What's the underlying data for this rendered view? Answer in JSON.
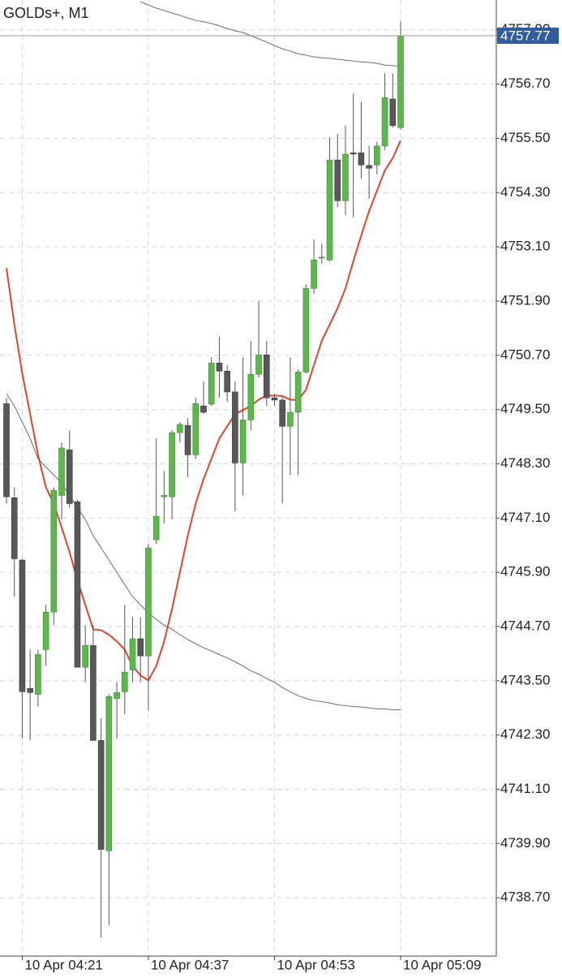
{
  "chart_data": {
    "type": "candlestick",
    "title": "GOLDs+, M1",
    "categories": [
      null,
      null,
      "10 Apr 04:21",
      null,
      null,
      null,
      null,
      null,
      null,
      null,
      null,
      null,
      null,
      null,
      null,
      null,
      null,
      null,
      "10 Apr 04:37",
      null,
      null,
      null,
      null,
      null,
      null,
      null,
      null,
      null,
      null,
      null,
      null,
      null,
      null,
      null,
      "10 Apr 04:53",
      null,
      null,
      null,
      null,
      null,
      null,
      null,
      null,
      null,
      null,
      null,
      null,
      null,
      null,
      null,
      "10 Apr 05:09"
    ],
    "open": [
      4749.63,
      4747.55,
      4746.17,
      4743.33,
      4743.2,
      4744.19,
      4745.02,
      4747.6,
      4748.61,
      4747.46,
      4743.8,
      4744.28,
      4742.18,
      4739.74,
      4743.11,
      4743.26,
      4743.74,
      4744.43,
      4744.05,
      4746.62,
      4747.57,
      4747.57,
      4748.99,
      4749.15,
      4748.5,
      4749.58,
      4749.62,
      4750.53,
      4750.35,
      4749.89,
      4748.32,
      4749.27,
      4750.28,
      4750.71,
      4749.76,
      4749.71,
      4749.13,
      4749.44,
      4750.33,
      4752.18,
      4752.85,
      4752.81,
      4755.02,
      4754.12,
      4755.18,
      4755.18,
      4754.9,
      4754.91,
      4755.33,
      4756.37,
      4755.74
    ],
    "high": [
      4749.76,
      4747.78,
      4746.2,
      4744.19,
      4744.19,
      4745.18,
      4747.78,
      4748.77,
      4749.04,
      4747.51,
      4744.73,
      4744.73,
      4742.67,
      4743.2,
      4743.47,
      4745.18,
      4744.91,
      4744.91,
      4746.53,
      4748.86,
      4748.14,
      4749.04,
      4749.22,
      4749.31,
      4749.76,
      4750.12,
      4750.66,
      4751.11,
      4750.48,
      4750.12,
      4750.66,
      4751.02,
      4751.91,
      4751.02,
      4749.85,
      4749.76,
      4750.66,
      4750.39,
      4752.27,
      4753.26,
      4753.17,
      4755.51,
      4755.6,
      4755.78,
      4756.49,
      4756.31,
      4755.33,
      4755.42,
      4756.94,
      4756.94,
      4758.08
    ],
    "low": [
      4747.42,
      4745.36,
      4742.22,
      4742.18,
      4742.93,
      4743.83,
      4744.73,
      4747.07,
      4747.33,
      4743.8,
      4743.47,
      4742.18,
      4737.82,
      4738.09,
      4742.22,
      4742.76,
      4743.47,
      4743.47,
      4742.84,
      4746.53,
      4746.98,
      4747.07,
      4748.77,
      4748.0,
      4748.41,
      4749.4,
      4749.58,
      4749.76,
      4749.67,
      4747.25,
      4747.6,
      4749.04,
      4750.21,
      4749.58,
      4749.58,
      4747.42,
      4748.05,
      4748.05,
      4750.3,
      4752.06,
      4752.72,
      4752.78,
      4753.98,
      4753.8,
      4753.75,
      4754.61,
      4754.16,
      4754.7,
      4755.24,
      4755.74,
      4755.69
    ],
    "close": [
      4747.57,
      4746.2,
      4743.26,
      4743.24,
      4744.08,
      4745.02,
      4747.71,
      4748.65,
      4747.42,
      4743.8,
      4744.28,
      4742.18,
      4739.77,
      4743.15,
      4743.24,
      4743.69,
      4744.43,
      4744.05,
      4746.44,
      4747.14,
      4747.6,
      4748.99,
      4749.17,
      4748.5,
      4749.63,
      4749.44,
      4750.53,
      4750.35,
      4749.89,
      4748.32,
      4749.27,
      4750.28,
      4750.71,
      4749.76,
      4749.71,
      4749.13,
      4749.44,
      4750.33,
      4752.18,
      4752.81,
      4752.87,
      4755.02,
      4754.12,
      4755.15,
      4755.15,
      4754.91,
      4754.84,
      4755.33,
      4756.4,
      4755.78,
      4757.77
    ],
    "up_color": "#5cb84a",
    "down_color": "#585858",
    "lines": [
      {
        "color": "#e0452b",
        "values": [
          4752.63,
          4751.38,
          4750.3,
          4749.4,
          4748.5,
          4747.78,
          4747.42,
          4746.89,
          4746.35,
          4745.72,
          4745.18,
          4744.64,
          4744.62,
          4744.52,
          4744.37,
          4744.19,
          4743.83,
          4743.62,
          4743.51,
          4743.83,
          4744.37,
          4745.09,
          4745.9,
          4746.71,
          4747.42,
          4747.96,
          4748.41,
          4748.86,
          4749.13,
          4749.4,
          4749.49,
          4749.58,
          4749.72,
          4749.81,
          4749.81,
          4749.8,
          4749.72,
          4749.71,
          4749.94,
          4750.48,
          4751.02,
          4751.38,
          4751.74,
          4752.18,
          4752.78,
          4753.35,
          4753.89,
          4754.34,
          4754.79,
          4755.06,
          4755.45
        ]
      },
      {
        "color": "#6b6b6b",
        "values": [
          4749.85,
          4749.58,
          4749.22,
          4748.86,
          4748.41,
          4748.23,
          4748.05,
          4747.87,
          4747.6,
          4747.33,
          4747.07,
          4746.71,
          4746.44,
          4746.17,
          4745.9,
          4745.63,
          4745.36,
          4745.18,
          4745.0,
          4744.86,
          4744.73,
          4744.64,
          4744.52,
          4744.41,
          4744.32,
          4744.23,
          4744.16,
          4744.08,
          4744.01,
          4743.92,
          4743.83,
          4743.72,
          4743.65,
          4743.55,
          4743.47,
          4743.35,
          4743.26,
          4743.17,
          4743.11,
          4743.06,
          4743.04,
          4743.01,
          4742.97,
          4742.95,
          4742.93,
          4742.92,
          4742.9,
          4742.88,
          4742.88,
          4742.86,
          4742.86
        ]
      },
      {
        "color": "#6b6b6b",
        "values": [
          null,
          null,
          null,
          null,
          null,
          null,
          null,
          null,
          null,
          null,
          null,
          null,
          null,
          null,
          null,
          null,
          null,
          4758.52,
          4758.45,
          4758.38,
          4758.33,
          4758.27,
          4758.22,
          4758.16,
          4758.11,
          4758.08,
          4758.04,
          4757.99,
          4757.93,
          4757.88,
          4757.84,
          4757.77,
          4757.7,
          4757.63,
          4757.55,
          4757.48,
          4757.43,
          4757.37,
          4757.34,
          4757.3,
          4757.28,
          4757.27,
          4757.25,
          4757.23,
          4757.21,
          4757.19,
          4757.18,
          4757.16,
          4757.12,
          4757.11,
          4757.09
        ]
      }
    ],
    "current_price": 4757.77,
    "ylim": [
      4737.41,
      4758.56
    ],
    "yticks": [
      {
        "value": 4757.9,
        "label": "4757.90"
      },
      {
        "value": 4756.7,
        "label": "4756.70"
      },
      {
        "value": 4755.5,
        "label": "4755.50"
      },
      {
        "value": 4754.3,
        "label": "4754.30"
      },
      {
        "value": 4753.1,
        "label": "4753.10"
      },
      {
        "value": 4751.9,
        "label": "4751.90"
      },
      {
        "value": 4750.7,
        "label": "4750.70"
      },
      {
        "value": 4749.5,
        "label": "4749.50"
      },
      {
        "value": 4748.3,
        "label": "4748.30"
      },
      {
        "value": 4747.1,
        "label": "4747.10"
      },
      {
        "value": 4745.9,
        "label": "4745.90"
      },
      {
        "value": 4744.7,
        "label": "4744.70"
      },
      {
        "value": 4743.5,
        "label": "4743.50"
      },
      {
        "value": 4742.3,
        "label": "4742.30"
      },
      {
        "value": 4741.1,
        "label": "4741.10"
      },
      {
        "value": 4739.9,
        "label": "4739.90"
      },
      {
        "value": 4738.7,
        "label": "4738.70"
      }
    ],
    "grid": true
  }
}
